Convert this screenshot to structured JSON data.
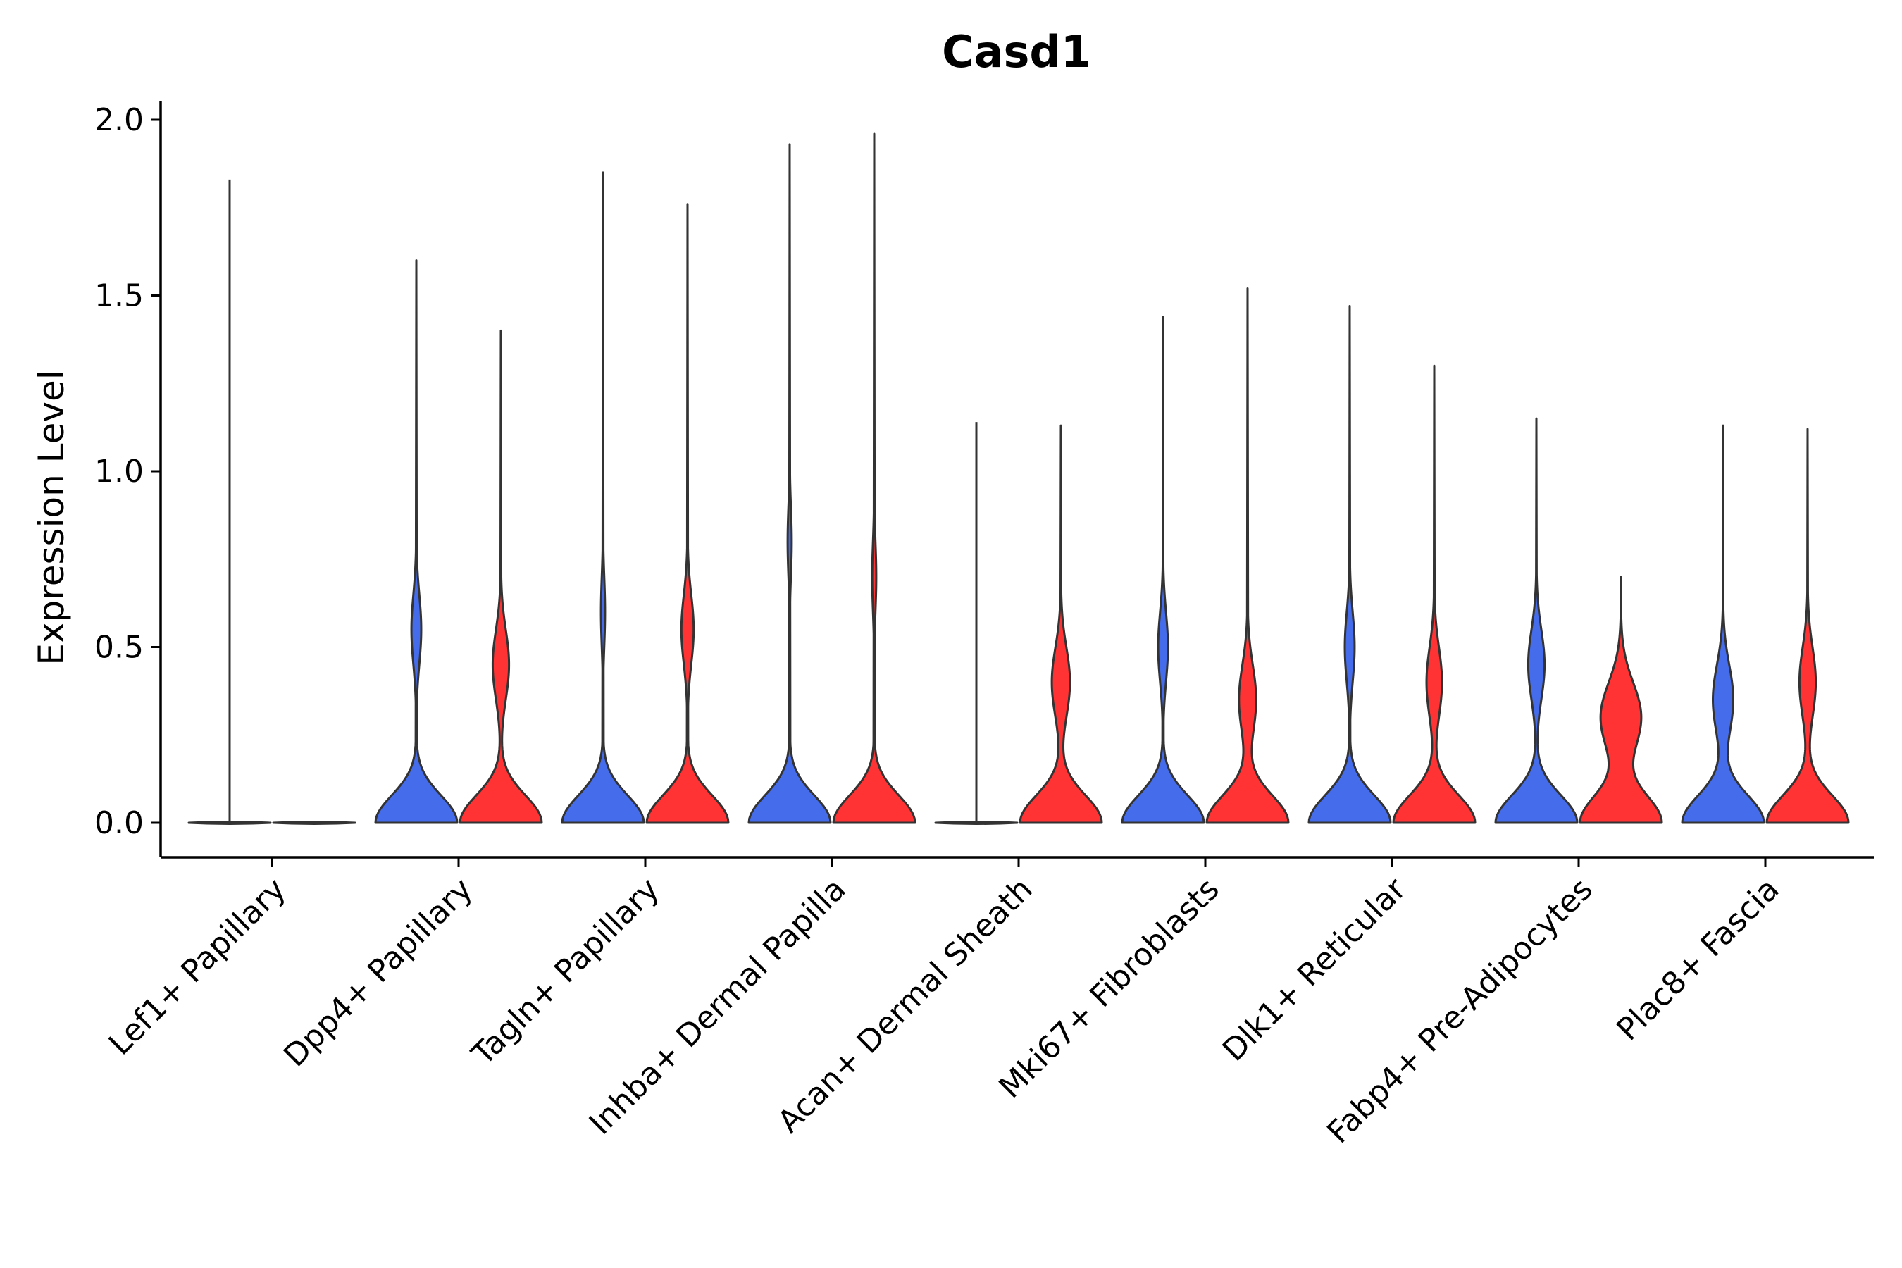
{
  "chart_data": {
    "type": "violin",
    "title": "Casd1",
    "xlabel": "",
    "ylabel": "Expression Level",
    "ylim": [
      -0.1,
      2.05
    ],
    "yticks": [
      0.0,
      0.5,
      1.0,
      1.5,
      2.0
    ],
    "ytick_labels": [
      "0.0",
      "0.5",
      "1.0",
      "1.5",
      "2.0"
    ],
    "grid": false,
    "legend": "none",
    "colors": {
      "group1": "#456CEA",
      "group2": "#FF3333",
      "outline": "#333333"
    },
    "categories": [
      "Lef1+ Papillary",
      "Dpp4+ Papillary",
      "Tagln+ Papillary",
      "Inhba+ Dermal Papilla",
      "Acan+ Dermal Sheath",
      "Mki67+ Fibroblasts",
      "Dlk1+ Reticular",
      "Fabp4+ Pre-Adipocytes",
      "Plac8+ Fascia"
    ],
    "violins": [
      {
        "category": "Lef1+ Papillary",
        "group": 1,
        "max": 1.83,
        "mode": 0.5,
        "mode_height": 0.0,
        "zero_width": 0.0,
        "flat": true
      },
      {
        "category": "Lef1+ Papillary",
        "group": 2,
        "max": 0.0,
        "mode": 0.5,
        "mode_height": 0.0,
        "zero_width": 0.0,
        "flat": true
      },
      {
        "category": "Dpp4+ Papillary",
        "group": 1,
        "max": 1.6,
        "mode": 0.55,
        "mode_height": 0.12,
        "zero_width": 1.0
      },
      {
        "category": "Dpp4+ Papillary",
        "group": 2,
        "max": 1.4,
        "mode": 0.45,
        "mode_height": 0.2,
        "zero_width": 1.0
      },
      {
        "category": "Tagln+ Papillary",
        "group": 1,
        "max": 1.85,
        "mode": 0.6,
        "mode_height": 0.05,
        "zero_width": 1.0
      },
      {
        "category": "Tagln+ Papillary",
        "group": 2,
        "max": 1.76,
        "mode": 0.55,
        "mode_height": 0.15,
        "zero_width": 1.0
      },
      {
        "category": "Inhba+ Dermal Papilla",
        "group": 1,
        "max": 1.93,
        "mode": 0.8,
        "mode_height": 0.05,
        "zero_width": 1.0
      },
      {
        "category": "Inhba+ Dermal Papilla",
        "group": 2,
        "max": 1.96,
        "mode": 0.7,
        "mode_height": 0.05,
        "zero_width": 1.0
      },
      {
        "category": "Acan+ Dermal Sheath",
        "group": 1,
        "max": 1.14,
        "mode": 0.5,
        "mode_height": 0.0,
        "zero_width": 0.0,
        "flat": true
      },
      {
        "category": "Acan+ Dermal Sheath",
        "group": 2,
        "max": 1.13,
        "mode": 0.4,
        "mode_height": 0.2,
        "zero_width": 0.9
      },
      {
        "category": "Mki67+ Fibroblasts",
        "group": 1,
        "max": 1.44,
        "mode": 0.5,
        "mode_height": 0.12,
        "zero_width": 1.0
      },
      {
        "category": "Mki67+ Fibroblasts",
        "group": 2,
        "max": 1.52,
        "mode": 0.35,
        "mode_height": 0.2,
        "zero_width": 0.95
      },
      {
        "category": "Dlk1+ Reticular",
        "group": 1,
        "max": 1.47,
        "mode": 0.5,
        "mode_height": 0.12,
        "zero_width": 1.0
      },
      {
        "category": "Dlk1+ Reticular",
        "group": 2,
        "max": 1.3,
        "mode": 0.4,
        "mode_height": 0.18,
        "zero_width": 0.95
      },
      {
        "category": "Fabp4+ Pre-Adipocytes",
        "group": 1,
        "max": 1.15,
        "mode": 0.45,
        "mode_height": 0.2,
        "zero_width": 1.0
      },
      {
        "category": "Fabp4+ Pre-Adipocytes",
        "group": 2,
        "max": 0.7,
        "mode": 0.3,
        "mode_height": 0.5,
        "zero_width": 1.0
      },
      {
        "category": "Plac8+ Fascia",
        "group": 1,
        "max": 1.13,
        "mode": 0.35,
        "mode_height": 0.25,
        "zero_width": 1.0
      },
      {
        "category": "Plac8+ Fascia",
        "group": 2,
        "max": 1.12,
        "mode": 0.4,
        "mode_height": 0.2,
        "zero_width": 1.0
      }
    ]
  }
}
